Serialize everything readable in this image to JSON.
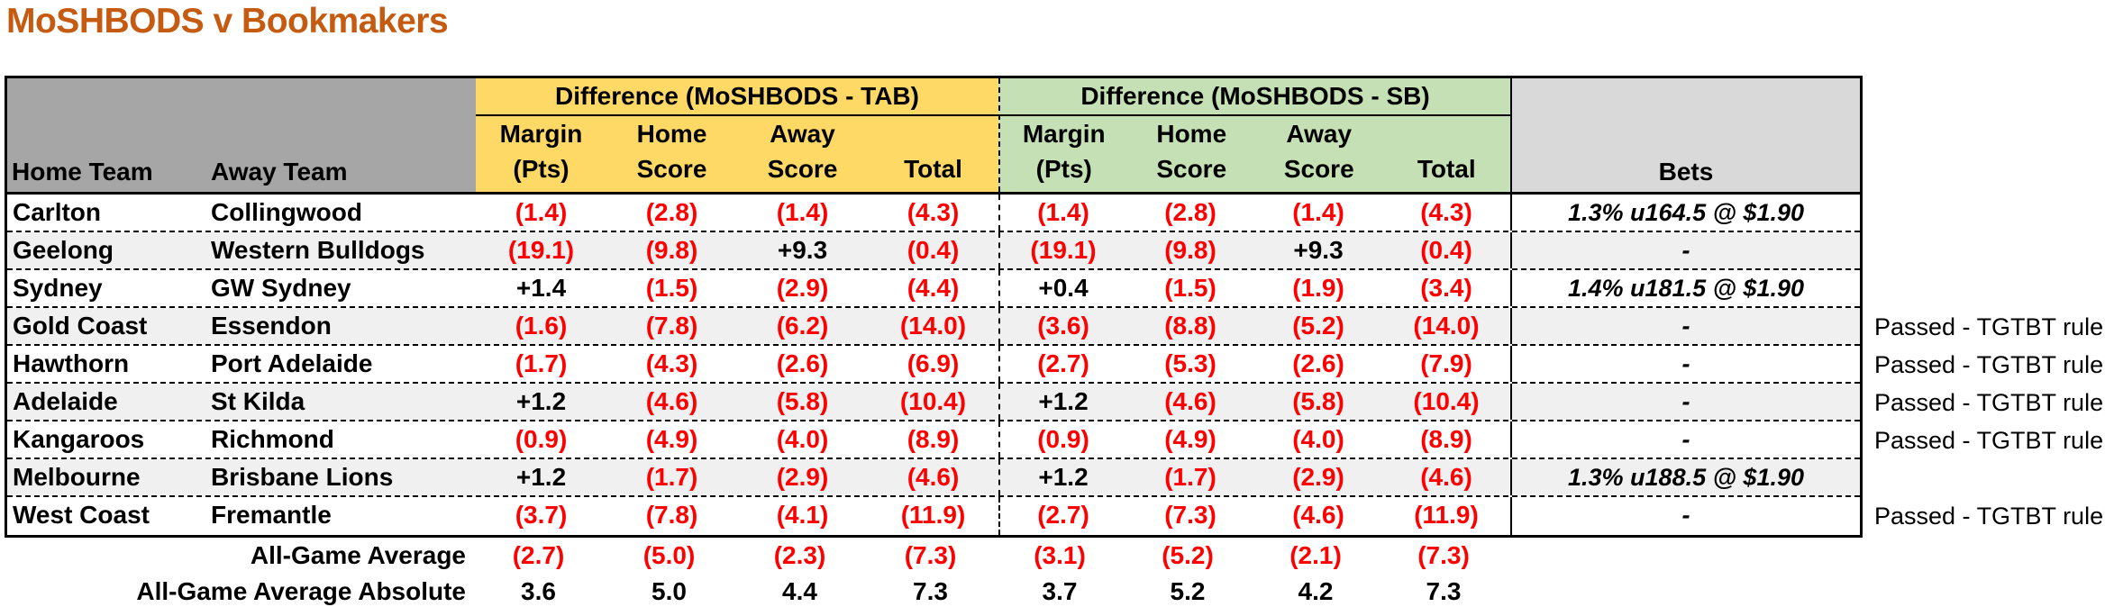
{
  "title": "MoSHBODS v Bookmakers",
  "colors": {
    "title_orange": "#C55A11",
    "tab_header_yellow": "#FFD966",
    "sb_header_green": "#C5E0B4",
    "left_header_gray": "#A6A6A6",
    "bets_header_gray": "#D9D9D9",
    "row_stripe_gray": "#F0F0F0",
    "negative_red": "#FF0000",
    "border_black": "#000000"
  },
  "table": {
    "left_header": {
      "home_team": "Home Team",
      "away_team": "Away Team"
    },
    "tab_group": {
      "label": "Difference (MoSHBODS - TAB)",
      "columns": [
        {
          "line1": "Margin",
          "line2": "(Pts)"
        },
        {
          "line1": "Home",
          "line2": "Score"
        },
        {
          "line1": "Away",
          "line2": "Score"
        },
        {
          "line1": "",
          "line2": "Total"
        }
      ]
    },
    "sb_group": {
      "label": "Difference (MoSHBODS - SB)",
      "columns": [
        {
          "line1": "Margin",
          "line2": "(Pts)"
        },
        {
          "line1": "Home",
          "line2": "Score"
        },
        {
          "line1": "Away",
          "line2": "Score"
        },
        {
          "line1": "",
          "line2": "Total"
        }
      ]
    },
    "bets_header": "Bets",
    "rows": [
      {
        "home": "Carlton",
        "away": "Collingwood",
        "tab": [
          "(1.4)",
          "(2.8)",
          "(1.4)",
          "(4.3)"
        ],
        "sb": [
          "(1.4)",
          "(2.8)",
          "(1.4)",
          "(4.3)"
        ],
        "bet": "1.3% u164.5 @ $1.90",
        "note": ""
      },
      {
        "home": "Geelong",
        "away": "Western Bulldogs",
        "tab": [
          "(19.1)",
          "(9.8)",
          "+9.3",
          "(0.4)"
        ],
        "sb": [
          "(19.1)",
          "(9.8)",
          "+9.3",
          "(0.4)"
        ],
        "bet": "-",
        "note": ""
      },
      {
        "home": "Sydney",
        "away": "GW Sydney",
        "tab": [
          "+1.4",
          "(1.5)",
          "(2.9)",
          "(4.4)"
        ],
        "sb": [
          "+0.4",
          "(1.5)",
          "(1.9)",
          "(3.4)"
        ],
        "bet": "1.4% u181.5 @ $1.90",
        "note": ""
      },
      {
        "home": "Gold Coast",
        "away": "Essendon",
        "tab": [
          "(1.6)",
          "(7.8)",
          "(6.2)",
          "(14.0)"
        ],
        "sb": [
          "(3.6)",
          "(8.8)",
          "(5.2)",
          "(14.0)"
        ],
        "bet": "-",
        "note": "Passed - TGTBT rule"
      },
      {
        "home": "Hawthorn",
        "away": "Port Adelaide",
        "tab": [
          "(1.7)",
          "(4.3)",
          "(2.6)",
          "(6.9)"
        ],
        "sb": [
          "(2.7)",
          "(5.3)",
          "(2.6)",
          "(7.9)"
        ],
        "bet": "-",
        "note": "Passed - TGTBT rule"
      },
      {
        "home": "Adelaide",
        "away": "St Kilda",
        "tab": [
          "+1.2",
          "(4.6)",
          "(5.8)",
          "(10.4)"
        ],
        "sb": [
          "+1.2",
          "(4.6)",
          "(5.8)",
          "(10.4)"
        ],
        "bet": "-",
        "note": "Passed - TGTBT rule"
      },
      {
        "home": "Kangaroos",
        "away": "Richmond",
        "tab": [
          "(0.9)",
          "(4.9)",
          "(4.0)",
          "(8.9)"
        ],
        "sb": [
          "(0.9)",
          "(4.9)",
          "(4.0)",
          "(8.9)"
        ],
        "bet": "-",
        "note": "Passed - TGTBT rule"
      },
      {
        "home": "Melbourne",
        "away": "Brisbane Lions",
        "tab": [
          "+1.2",
          "(1.7)",
          "(2.9)",
          "(4.6)"
        ],
        "sb": [
          "+1.2",
          "(1.7)",
          "(2.9)",
          "(4.6)"
        ],
        "bet": "1.3% u188.5 @ $1.90",
        "note": ""
      },
      {
        "home": "West Coast",
        "away": "Fremantle",
        "tab": [
          "(3.7)",
          "(7.8)",
          "(4.1)",
          "(11.9)"
        ],
        "sb": [
          "(2.7)",
          "(7.3)",
          "(4.6)",
          "(11.9)"
        ],
        "bet": "-",
        "note": "Passed - TGTBT rule"
      }
    ],
    "summary_rows": [
      {
        "label": "All-Game Average",
        "tab": [
          "(2.7)",
          "(5.0)",
          "(2.3)",
          "(7.3)"
        ],
        "sb": [
          "(3.1)",
          "(5.2)",
          "(2.1)",
          "(7.3)"
        ]
      },
      {
        "label": "All-Game Average Absolute",
        "tab": [
          "3.6",
          "5.0",
          "4.4",
          "7.3"
        ],
        "sb": [
          "3.7",
          "5.2",
          "4.2",
          "7.3"
        ]
      }
    ]
  }
}
